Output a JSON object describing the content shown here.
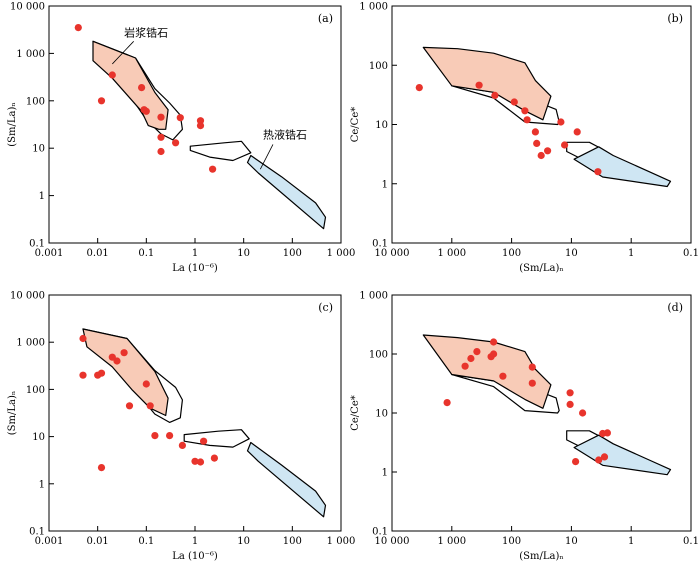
{
  "colors": {
    "magmatic_fill": "#f8cbb7",
    "hydrothermal_fill": "#cfe6f3",
    "point": "#e8342c",
    "outline": "#000000"
  },
  "chart_data": [
    {
      "panel": "(a)",
      "type": "scatter",
      "xlabel": "La (10⁻⁶)",
      "ylabel": "(Sm/La)ₙ",
      "xscale": "log",
      "yscale": "log",
      "xlim": [
        0.001,
        1000
      ],
      "ylim": [
        0.1,
        10000
      ],
      "xticks": [
        "0.001",
        "0.01",
        "0.1",
        "1",
        "10",
        "100",
        "1 000"
      ],
      "yticks": [
        "0.1",
        "1",
        "10",
        "100",
        "1 000",
        "10 000"
      ],
      "annotations": [
        "岩浆锆石",
        "热液锆石"
      ],
      "points": [
        [
          0.004,
          3500
        ],
        [
          0.012,
          100
        ],
        [
          0.02,
          350
        ],
        [
          0.08,
          190
        ],
        [
          0.09,
          65
        ],
        [
          0.1,
          60
        ],
        [
          0.2,
          45
        ],
        [
          0.2,
          17
        ],
        [
          0.2,
          8.5
        ],
        [
          0.4,
          13
        ],
        [
          0.5,
          44
        ],
        [
          1.3,
          38
        ],
        [
          1.3,
          30
        ],
        [
          2.3,
          3.6
        ]
      ]
    },
    {
      "panel": "(b)",
      "type": "scatter",
      "xlabel": "(Sm/La)ₙ",
      "ylabel": "Ce/Ce*",
      "xscale": "log-reversed",
      "yscale": "log",
      "xlim": [
        10000,
        0.1
      ],
      "ylim": [
        0.1,
        1000
      ],
      "xticks": [
        "10 000",
        "1 000",
        "100",
        "10",
        "1",
        "0.1"
      ],
      "yticks": [
        "0.1",
        "1",
        "10",
        "100",
        "1 000"
      ],
      "points": [
        [
          3500,
          42
        ],
        [
          350,
          46
        ],
        [
          190,
          31
        ],
        [
          90,
          24
        ],
        [
          60,
          17
        ],
        [
          55,
          12
        ],
        [
          40,
          7.5
        ],
        [
          38,
          4.8
        ],
        [
          32,
          3
        ],
        [
          25,
          3.6
        ],
        [
          15,
          11
        ],
        [
          8,
          7.5
        ],
        [
          13,
          4.5
        ],
        [
          3.6,
          1.6
        ]
      ]
    },
    {
      "panel": "(c)",
      "type": "scatter",
      "xlabel": "La (10⁻⁶)",
      "ylabel": "(Sm/La)ₙ",
      "xscale": "log",
      "yscale": "log",
      "xlim": [
        0.001,
        1000
      ],
      "ylim": [
        0.1,
        10000
      ],
      "xticks": [
        "0.001",
        "0.01",
        "0.1",
        "1",
        "10",
        "100",
        "1 000"
      ],
      "yticks": [
        "0.1",
        "1",
        "10",
        "100",
        "1 000",
        "10 000"
      ],
      "points": [
        [
          0.005,
          1200
        ],
        [
          0.005,
          200
        ],
        [
          0.01,
          200
        ],
        [
          0.012,
          220
        ],
        [
          0.02,
          480
        ],
        [
          0.025,
          400
        ],
        [
          0.035,
          600
        ],
        [
          0.045,
          45
        ],
        [
          0.1,
          130
        ],
        [
          0.12,
          45
        ],
        [
          0.15,
          10.5
        ],
        [
          0.3,
          10.5
        ],
        [
          0.55,
          6.5
        ],
        [
          1.0,
          3
        ],
        [
          1.3,
          2.9
        ],
        [
          1.5,
          8
        ],
        [
          2.5,
          3.5
        ],
        [
          0.012,
          2.2
        ]
      ]
    },
    {
      "panel": "(d)",
      "type": "scatter",
      "xlabel": "(Sm/La)ₙ",
      "ylabel": "Ce/Ce*",
      "xscale": "log-reversed",
      "yscale": "log",
      "xlim": [
        10000,
        0.1
      ],
      "ylim": [
        0.1,
        1000
      ],
      "xticks": [
        "10 000",
        "1 000",
        "100",
        "10",
        "1",
        "0.1"
      ],
      "yticks": [
        "0.1",
        "1",
        "10",
        "100",
        "1 000"
      ],
      "points": [
        [
          1200,
          15
        ],
        [
          600,
          62
        ],
        [
          480,
          84
        ],
        [
          380,
          110
        ],
        [
          220,
          90
        ],
        [
          200,
          100
        ],
        [
          200,
          160
        ],
        [
          140,
          42
        ],
        [
          45,
          60
        ],
        [
          45,
          32
        ],
        [
          10.5,
          22
        ],
        [
          10.5,
          14
        ],
        [
          6.5,
          10
        ],
        [
          3,
          4.5
        ],
        [
          2.5,
          4.6
        ],
        [
          8.5,
          1.5
        ],
        [
          3.5,
          1.6
        ],
        [
          2.8,
          1.8
        ]
      ]
    }
  ]
}
